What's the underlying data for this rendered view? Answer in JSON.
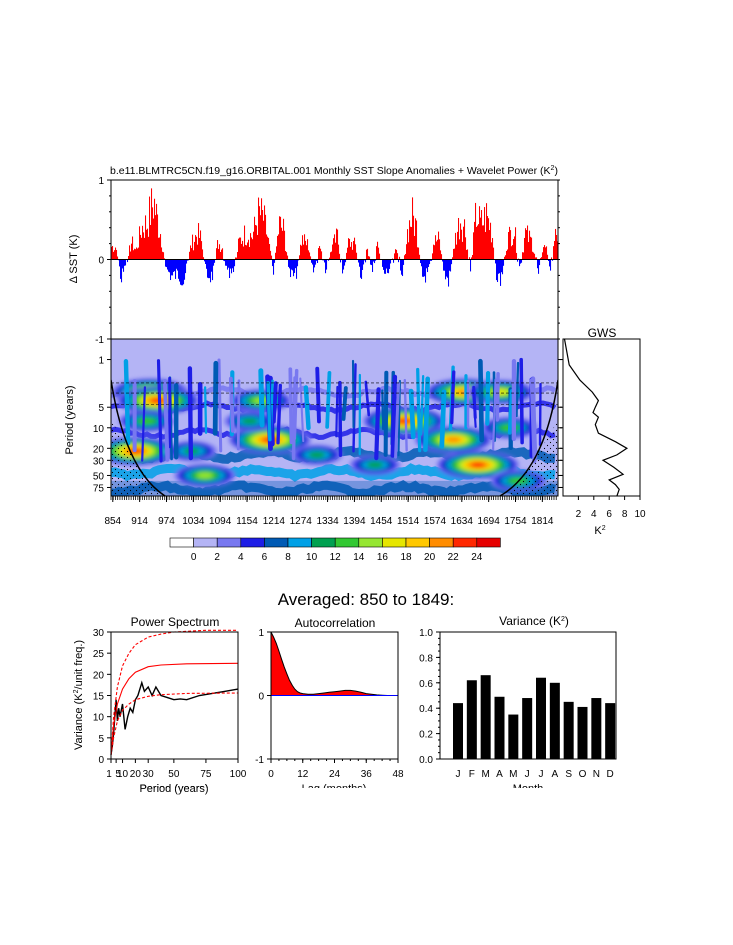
{
  "page_title": "Averaged: 850 to 1849:",
  "chart_data": [
    {
      "id": "sst",
      "type": "area",
      "title_main": "b.e11.BLMTRC5CN.f19_g16.ORBITAL.001 Monthly SST Slope Anomalies + Wavelet Power (K",
      "title_sup": "2",
      "title_end": ")",
      "ylabel": "Δ SST (K)",
      "ylim": [
        -1,
        1
      ],
      "yticks": [
        "1",
        "0",
        "-1"
      ],
      "xlim": [
        850,
        1849
      ],
      "positive_color": "#ff0000",
      "negative_color": "#0000ff",
      "peaks": [
        {
          "year": 860,
          "value": 0.22
        },
        {
          "year": 872,
          "value": -0.35
        },
        {
          "year": 895,
          "value": 0.3
        },
        {
          "year": 905,
          "value": 0.15
        },
        {
          "year": 918,
          "value": 0.55
        },
        {
          "year": 930,
          "value": 0.62
        },
        {
          "year": 940,
          "value": 0.9
        },
        {
          "year": 945,
          "value": 1.0
        },
        {
          "year": 952,
          "value": 0.7
        },
        {
          "year": 960,
          "value": 0.45
        },
        {
          "year": 972,
          "value": -0.15
        },
        {
          "year": 985,
          "value": -0.3
        },
        {
          "year": 998,
          "value": -0.25
        },
        {
          "year": 1012,
          "value": -0.35
        },
        {
          "year": 1028,
          "value": 0.25
        },
        {
          "year": 1042,
          "value": 0.45
        },
        {
          "year": 1050,
          "value": 0.35
        },
        {
          "year": 1062,
          "value": -0.25
        },
        {
          "year": 1075,
          "value": -0.3
        },
        {
          "year": 1088,
          "value": 0.3
        },
        {
          "year": 1098,
          "value": 0.2
        },
        {
          "year": 1110,
          "value": -0.3
        },
        {
          "year": 1122,
          "value": -0.25
        },
        {
          "year": 1135,
          "value": 0.3
        },
        {
          "year": 1150,
          "value": 0.45
        },
        {
          "year": 1165,
          "value": 0.4
        },
        {
          "year": 1180,
          "value": 0.8
        },
        {
          "year": 1190,
          "value": 0.7
        },
        {
          "year": 1200,
          "value": 0.35
        },
        {
          "year": 1212,
          "value": -0.2
        },
        {
          "year": 1225,
          "value": 0.6
        },
        {
          "year": 1235,
          "value": 0.5
        },
        {
          "year": 1248,
          "value": -0.25
        },
        {
          "year": 1262,
          "value": -0.3
        },
        {
          "year": 1275,
          "value": 0.35
        },
        {
          "year": 1290,
          "value": 0.25
        },
        {
          "year": 1302,
          "value": -0.25
        },
        {
          "year": 1315,
          "value": 0.25
        },
        {
          "year": 1328,
          "value": -0.2
        },
        {
          "year": 1342,
          "value": 0.2
        },
        {
          "year": 1355,
          "value": 0.4
        },
        {
          "year": 1368,
          "value": -0.25
        },
        {
          "year": 1380,
          "value": 0.3
        },
        {
          "year": 1395,
          "value": 0.25
        },
        {
          "year": 1408,
          "value": -0.3
        },
        {
          "year": 1420,
          "value": 0.2
        },
        {
          "year": 1432,
          "value": -0.2
        },
        {
          "year": 1445,
          "value": 0.25
        },
        {
          "year": 1458,
          "value": -0.25
        },
        {
          "year": 1470,
          "value": -0.2
        },
        {
          "year": 1485,
          "value": 0.2
        },
        {
          "year": 1500,
          "value": -0.25
        },
        {
          "year": 1512,
          "value": 0.5
        },
        {
          "year": 1522,
          "value": 0.75
        },
        {
          "year": 1532,
          "value": 0.55
        },
        {
          "year": 1545,
          "value": -0.3
        },
        {
          "year": 1558,
          "value": -0.25
        },
        {
          "year": 1570,
          "value": 0.3
        },
        {
          "year": 1582,
          "value": 0.35
        },
        {
          "year": 1595,
          "value": -0.3
        },
        {
          "year": 1605,
          "value": -0.35
        },
        {
          "year": 1618,
          "value": 0.35
        },
        {
          "year": 1630,
          "value": 0.7
        },
        {
          "year": 1640,
          "value": 0.55
        },
        {
          "year": 1652,
          "value": -0.25
        },
        {
          "year": 1665,
          "value": 0.8
        },
        {
          "year": 1675,
          "value": 0.6
        },
        {
          "year": 1688,
          "value": 0.75
        },
        {
          "year": 1700,
          "value": 0.5
        },
        {
          "year": 1712,
          "value": -0.35
        },
        {
          "year": 1722,
          "value": -0.3
        },
        {
          "year": 1735,
          "value": 0.35
        },
        {
          "year": 1750,
          "value": 0.55
        },
        {
          "year": 1762,
          "value": -0.2
        },
        {
          "year": 1775,
          "value": 0.45
        },
        {
          "year": 1790,
          "value": 0.3
        },
        {
          "year": 1805,
          "value": -0.2
        },
        {
          "year": 1818,
          "value": 0.35
        },
        {
          "year": 1830,
          "value": -0.2
        },
        {
          "year": 1842,
          "value": 0.4
        }
      ]
    },
    {
      "id": "wavelet",
      "type": "heatmap",
      "ylabel": "Period (years)",
      "yticks": [
        "1",
        "5",
        "10",
        "20",
        "30",
        "50",
        "75"
      ],
      "ytick_values": [
        1,
        5,
        10,
        20,
        30,
        50,
        75
      ],
      "ylim": [
        0.5,
        100
      ],
      "xticks": [
        "854",
        "914",
        "974",
        "1034",
        "1094",
        "1154",
        "1214",
        "1274",
        "1334",
        "1394",
        "1454",
        "1514",
        "1574",
        "1634",
        "1694",
        "1754",
        "1814"
      ],
      "xtick_values": [
        854,
        914,
        974,
        1034,
        1094,
        1154,
        1214,
        1274,
        1334,
        1394,
        1454,
        1514,
        1574,
        1634,
        1694,
        1754,
        1814
      ],
      "xlim": [
        850,
        1849
      ],
      "colorbar_labels": [
        "0",
        "2",
        "4",
        "6",
        "8",
        "10",
        "12",
        "14",
        "16",
        "18",
        "20",
        "22",
        "24"
      ],
      "colorbar_colors": [
        "#ffffff",
        "#b4b4f5",
        "#7878f0",
        "#1e1ee6",
        "#005ab4",
        "#00a0e6",
        "#00a050",
        "#32c832",
        "#96e632",
        "#e6e600",
        "#ffc800",
        "#ff8c00",
        "#ff2800",
        "#e60000"
      ],
      "blobs": [
        {
          "year": 938,
          "period": 3,
          "power": 22
        },
        {
          "year": 955,
          "period": 4,
          "power": 24
        },
        {
          "year": 930,
          "period": 8,
          "power": 14
        },
        {
          "year": 905,
          "period": 22,
          "power": 24
        },
        {
          "year": 1030,
          "period": 22,
          "power": 12
        },
        {
          "year": 1185,
          "period": 4,
          "power": 16
        },
        {
          "year": 1205,
          "period": 15,
          "power": 24
        },
        {
          "year": 1160,
          "period": 8,
          "power": 12
        },
        {
          "year": 1310,
          "period": 25,
          "power": 12
        },
        {
          "year": 1505,
          "period": 8,
          "power": 24
        },
        {
          "year": 1640,
          "period": 3,
          "power": 22
        },
        {
          "year": 1615,
          "period": 15,
          "power": 22
        },
        {
          "year": 1670,
          "period": 35,
          "power": 24
        },
        {
          "year": 1720,
          "period": 3,
          "power": 18
        },
        {
          "year": 1740,
          "period": 10,
          "power": 14
        },
        {
          "year": 1060,
          "period": 50,
          "power": 16
        },
        {
          "year": 1440,
          "period": 35,
          "power": 12
        },
        {
          "year": 1760,
          "period": 60,
          "power": 14
        }
      ]
    },
    {
      "id": "gws",
      "type": "line",
      "title": "GWS",
      "xlabel": "K",
      "xlabel_sup": "2",
      "xticks": [
        "2",
        "4",
        "6",
        "8",
        "10"
      ],
      "xlim": [
        0,
        10
      ],
      "points": [
        {
          "period": 0.5,
          "value": 0.2
        },
        {
          "period": 1.2,
          "value": 0.8
        },
        {
          "period": 2,
          "value": 2.2
        },
        {
          "period": 3,
          "value": 3.8
        },
        {
          "period": 4,
          "value": 4.6
        },
        {
          "period": 5,
          "value": 4.2
        },
        {
          "period": 6,
          "value": 3.9
        },
        {
          "period": 7,
          "value": 4.6
        },
        {
          "period": 9,
          "value": 4.2
        },
        {
          "period": 12,
          "value": 4.6
        },
        {
          "period": 16,
          "value": 6.8
        },
        {
          "period": 20,
          "value": 8.3
        },
        {
          "period": 25,
          "value": 7.0
        },
        {
          "period": 30,
          "value": 5.2
        },
        {
          "period": 38,
          "value": 6.6
        },
        {
          "period": 48,
          "value": 7.8
        },
        {
          "period": 58,
          "value": 6.0
        },
        {
          "period": 68,
          "value": 6.8
        },
        {
          "period": 80,
          "value": 7.3
        },
        {
          "period": 100,
          "value": 7.0
        }
      ]
    },
    {
      "id": "power",
      "type": "line",
      "title": "Power Spectrum",
      "xlabel": "Period (years)",
      "ylabel_a": "Variance (K",
      "ylabel_sup": "2",
      "ylabel_b": "/unit freq.)",
      "xticks": [
        "1",
        "5",
        "10",
        "20",
        "30",
        "50",
        "75",
        "100"
      ],
      "xtick_values": [
        1,
        5,
        10,
        20,
        30,
        50,
        75,
        100
      ],
      "xlim": [
        1,
        100
      ],
      "yticks": [
        "0",
        "5",
        "10",
        "15",
        "20",
        "25",
        "30"
      ],
      "ylim": [
        0,
        30
      ],
      "series": [
        {
          "name": "spectrum",
          "color": "#000000",
          "points": [
            [
              1,
              1
            ],
            [
              2,
              3
            ],
            [
              3,
              6
            ],
            [
              4,
              10
            ],
            [
              5,
              14
            ],
            [
              6,
              9
            ],
            [
              7,
              12
            ],
            [
              8,
              10
            ],
            [
              10,
              13
            ],
            [
              12,
              7
            ],
            [
              14,
              10
            ],
            [
              16,
              12
            ],
            [
              18,
              11
            ],
            [
              20,
              14
            ],
            [
              22,
              15
            ],
            [
              25,
              18
            ],
            [
              27,
              16
            ],
            [
              30,
              17
            ],
            [
              33,
              15
            ],
            [
              36,
              17
            ],
            [
              40,
              15
            ],
            [
              45,
              14.5
            ],
            [
              50,
              14
            ],
            [
              55,
              14.2
            ],
            [
              60,
              14
            ],
            [
              70,
              15
            ],
            [
              80,
              15.5
            ],
            [
              90,
              16
            ],
            [
              100,
              16.5
            ]
          ]
        },
        {
          "name": "red-noise-95",
          "color": "#ff0000",
          "dashed": true,
          "points": [
            [
              1,
              1
            ],
            [
              3,
              10
            ],
            [
              6,
              17
            ],
            [
              10,
              22
            ],
            [
              15,
              25
            ],
            [
              20,
              27
            ],
            [
              30,
              28.8
            ],
            [
              40,
              29.5
            ],
            [
              50,
              30
            ],
            [
              75,
              30.5
            ],
            [
              100,
              30.8
            ]
          ]
        },
        {
          "name": "red-noise-mean",
          "color": "#ff0000",
          "dashed": false,
          "points": [
            [
              1,
              1
            ],
            [
              3,
              8
            ],
            [
              6,
              13
            ],
            [
              10,
              16.5
            ],
            [
              15,
              19
            ],
            [
              20,
              20.5
            ],
            [
              30,
              21.8
            ],
            [
              40,
              22.2
            ],
            [
              60,
              22.5
            ],
            [
              100,
              22.6
            ]
          ]
        },
        {
          "name": "red-noise-5",
          "color": "#ff0000",
          "dashed": true,
          "points": [
            [
              1,
              1
            ],
            [
              3,
              5
            ],
            [
              6,
              9
            ],
            [
              10,
              11.5
            ],
            [
              15,
              13
            ],
            [
              20,
              14
            ],
            [
              30,
              14.8
            ],
            [
              40,
              15.2
            ],
            [
              60,
              15.5
            ],
            [
              100,
              15.6
            ]
          ]
        }
      ]
    },
    {
      "id": "autocorr",
      "type": "area",
      "title": "Autocorrelation",
      "xlabel": "Lag (months)",
      "xticks": [
        "0",
        "12",
        "24",
        "36",
        "48"
      ],
      "xlim": [
        0,
        48
      ],
      "yticks": [
        "1",
        "0",
        "-1"
      ],
      "ylim": [
        -1,
        1
      ],
      "points": [
        [
          0,
          1
        ],
        [
          1,
          0.92
        ],
        [
          2,
          0.82
        ],
        [
          3,
          0.7
        ],
        [
          4,
          0.57
        ],
        [
          5,
          0.45
        ],
        [
          6,
          0.34
        ],
        [
          7,
          0.24
        ],
        [
          8,
          0.16
        ],
        [
          9,
          0.1
        ],
        [
          10,
          0.06
        ],
        [
          11,
          0.04
        ],
        [
          12,
          0.03
        ],
        [
          14,
          0.02
        ],
        [
          16,
          0.02
        ],
        [
          18,
          0.03
        ],
        [
          20,
          0.04
        ],
        [
          22,
          0.05
        ],
        [
          24,
          0.06
        ],
        [
          26,
          0.07
        ],
        [
          28,
          0.08
        ],
        [
          30,
          0.08
        ],
        [
          32,
          0.07
        ],
        [
          34,
          0.05
        ],
        [
          36,
          0.03
        ],
        [
          38,
          0.02
        ],
        [
          40,
          0.01
        ],
        [
          42,
          0.005
        ],
        [
          44,
          0
        ],
        [
          46,
          0
        ],
        [
          48,
          0
        ]
      ]
    },
    {
      "id": "variance",
      "type": "bar",
      "title_a": "Variance (K",
      "title_sup": "2",
      "title_b": ")",
      "xlabel": "Month",
      "categories": [
        "J",
        "F",
        "M",
        "A",
        "M",
        "J",
        "J",
        "A",
        "S",
        "O",
        "N",
        "D"
      ],
      "values": [
        0.44,
        0.62,
        0.66,
        0.49,
        0.35,
        0.48,
        0.64,
        0.6,
        0.45,
        0.41,
        0.48,
        0.44
      ],
      "yticks": [
        "0.0",
        "0.2",
        "0.4",
        "0.6",
        "0.8",
        "1.0"
      ],
      "ylim": [
        0,
        1
      ]
    }
  ]
}
